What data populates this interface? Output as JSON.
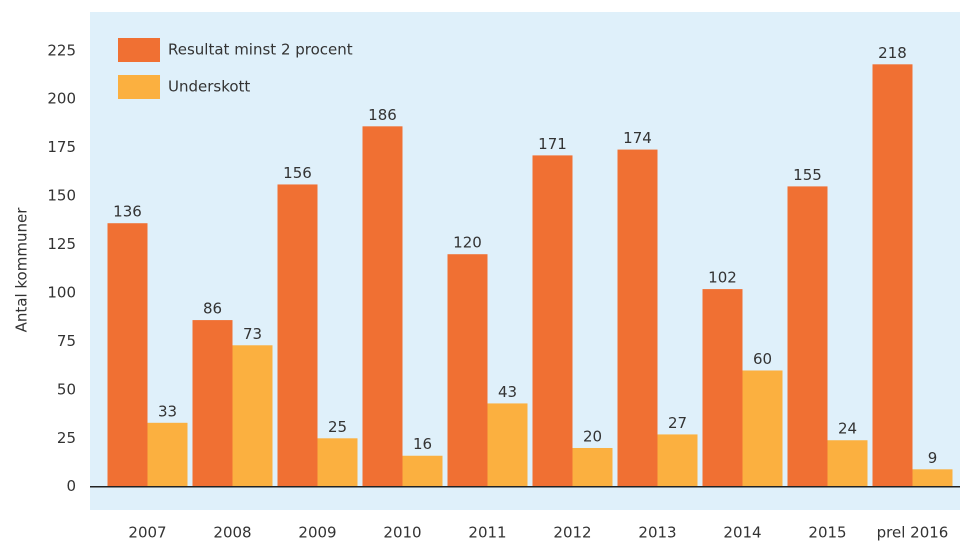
{
  "chart_data": {
    "type": "bar",
    "y_label": "Antal kommuner",
    "categories": [
      "2007",
      "2008",
      "2009",
      "2010",
      "2011",
      "2012",
      "2013",
      "2014",
      "2015",
      "prel 2016"
    ],
    "series": [
      {
        "name": "Resultat minst 2 procent",
        "color": "#f07033",
        "values": [
          136,
          86,
          156,
          186,
          120,
          171,
          174,
          102,
          155,
          218
        ]
      },
      {
        "name": "Underskott",
        "color": "#fbb040",
        "values": [
          33,
          73,
          25,
          16,
          43,
          20,
          27,
          60,
          24,
          9
        ]
      }
    ],
    "ylim": [
      -12,
      245
    ],
    "yticks": [
      0,
      25,
      50,
      75,
      100,
      125,
      150,
      175,
      200,
      225
    ],
    "grid": false,
    "legend": "top-left"
  }
}
